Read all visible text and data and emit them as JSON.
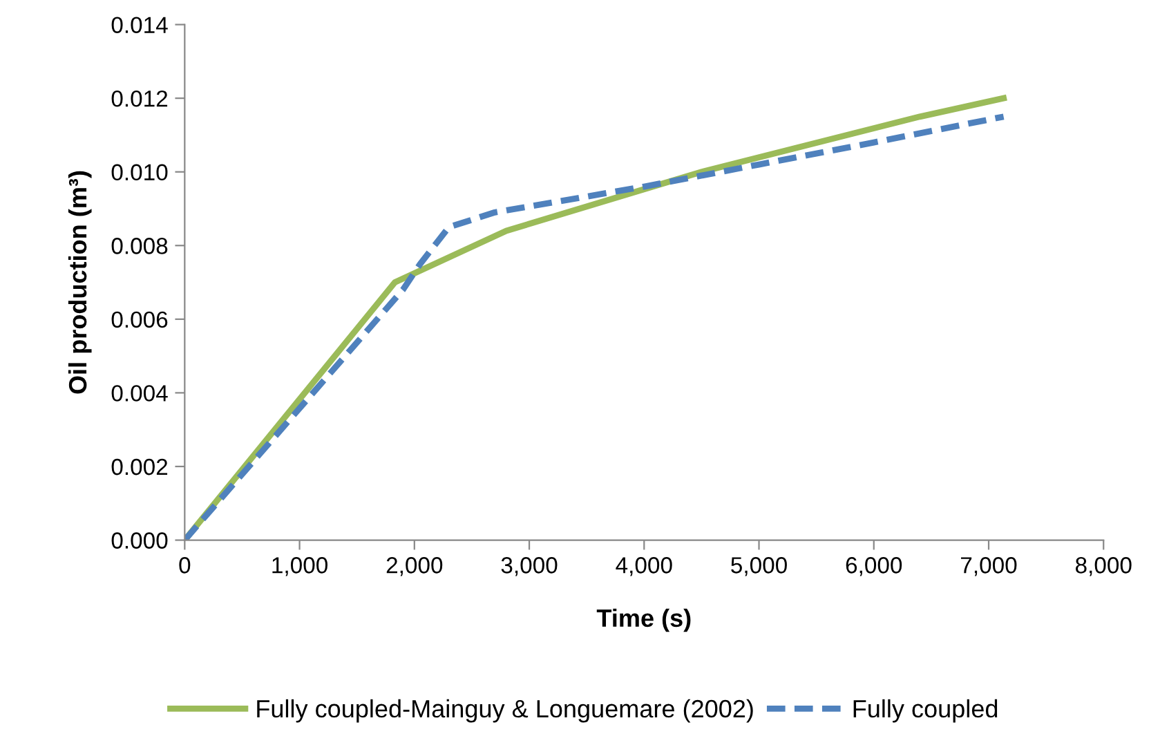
{
  "chart_data": {
    "type": "line",
    "xlabel": "Time (s)",
    "ylabel": "Oil production (m³)",
    "xlim": [
      0,
      8000
    ],
    "xticks": [
      {
        "value": 0,
        "label": "0"
      },
      {
        "value": 1000,
        "label": "1,000"
      },
      {
        "value": 2000,
        "label": "2,000"
      },
      {
        "value": 3000,
        "label": "3,000"
      },
      {
        "value": 4000,
        "label": "4,000"
      },
      {
        "value": 5000,
        "label": "5,000"
      },
      {
        "value": 6000,
        "label": "6,000"
      },
      {
        "value": 7000,
        "label": "7,000"
      },
      {
        "value": 8000,
        "label": "8,000"
      }
    ],
    "ylim": [
      0,
      0.014
    ],
    "yticks": [
      {
        "value": 0,
        "label": "0.000"
      },
      {
        "value": 0.002,
        "label": "0.002"
      },
      {
        "value": 0.004,
        "label": "0.004"
      },
      {
        "value": 0.006,
        "label": "0.006"
      },
      {
        "value": 0.008,
        "label": "0.008"
      },
      {
        "value": 0.01,
        "label": "0.010"
      },
      {
        "value": 0.012,
        "label": "0.012"
      },
      {
        "value": 0.014,
        "label": "0.014"
      }
    ],
    "grid": false,
    "legend": "bottom",
    "marker": "none",
    "series": [
      {
        "name": "Fully coupled-Mainguy & Longuemare (2002)",
        "color": "#9bbb59",
        "line_style": "solid",
        "x": [
          0,
          1830,
          2800,
          4500,
          6400,
          7130
        ],
        "values": [
          0,
          0.007,
          0.0084,
          0.01,
          0.0115,
          0.012
        ]
      },
      {
        "name": "Fully coupled",
        "color": "#4f81bd",
        "line_style": "dashed",
        "x": [
          0,
          1900,
          2050,
          2300,
          2700,
          4000,
          5000,
          6000,
          7130
        ],
        "values": [
          0,
          0.0068,
          0.0075,
          0.0085,
          0.0089,
          0.0096,
          0.0102,
          0.0108,
          0.0115
        ]
      }
    ]
  }
}
